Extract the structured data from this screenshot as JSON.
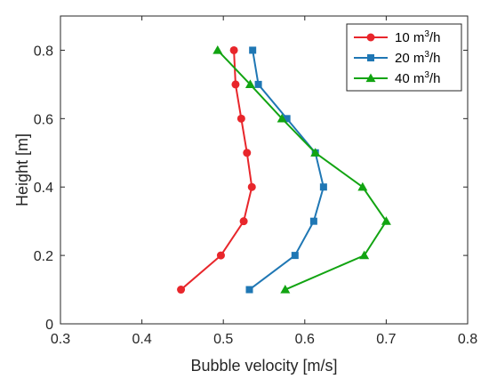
{
  "chart_data": {
    "type": "line",
    "title": "",
    "xlabel": "Bubble velocity [m/s]",
    "ylabel": "Height [m]",
    "xlim": [
      0.3,
      0.8
    ],
    "ylim": [
      0,
      0.9
    ],
    "xticks": [
      0.3,
      0.4,
      0.5,
      0.6,
      0.7,
      0.8
    ],
    "yticks": [
      0,
      0.2,
      0.4,
      0.6,
      0.8
    ],
    "xtick_labels": [
      "0.3",
      "0.4",
      "0.5",
      "0.6",
      "0.7",
      "0.8"
    ],
    "ytick_labels": [
      "0",
      "0.2",
      "0.4",
      "0.6",
      "0.8"
    ],
    "grid": false,
    "legend_position": "top-right",
    "series": [
      {
        "name_base": "10 m",
        "name_sup": "3",
        "name_unit": "/h",
        "color": "#e8262b",
        "marker": "circle",
        "x": [
          0.448,
          0.497,
          0.525,
          0.535,
          0.529,
          0.522,
          0.515,
          0.513
        ],
        "y": [
          0.1,
          0.2,
          0.3,
          0.4,
          0.5,
          0.6,
          0.7,
          0.8
        ]
      },
      {
        "name_base": "20 m",
        "name_sup": "3",
        "name_unit": "/h",
        "color": "#1f77b4",
        "marker": "square",
        "x": [
          0.532,
          0.588,
          0.611,
          0.623,
          0.613,
          0.578,
          0.543,
          0.536
        ],
        "y": [
          0.1,
          0.2,
          0.3,
          0.4,
          0.5,
          0.6,
          0.7,
          0.8
        ]
      },
      {
        "name_base": "40 m",
        "name_sup": "3",
        "name_unit": "/h",
        "color": "#12a412",
        "marker": "triangle",
        "x": [
          0.576,
          0.673,
          0.7,
          0.671,
          0.613,
          0.572,
          0.533,
          0.493
        ],
        "y": [
          0.1,
          0.2,
          0.3,
          0.4,
          0.5,
          0.6,
          0.7,
          0.8
        ]
      }
    ]
  }
}
